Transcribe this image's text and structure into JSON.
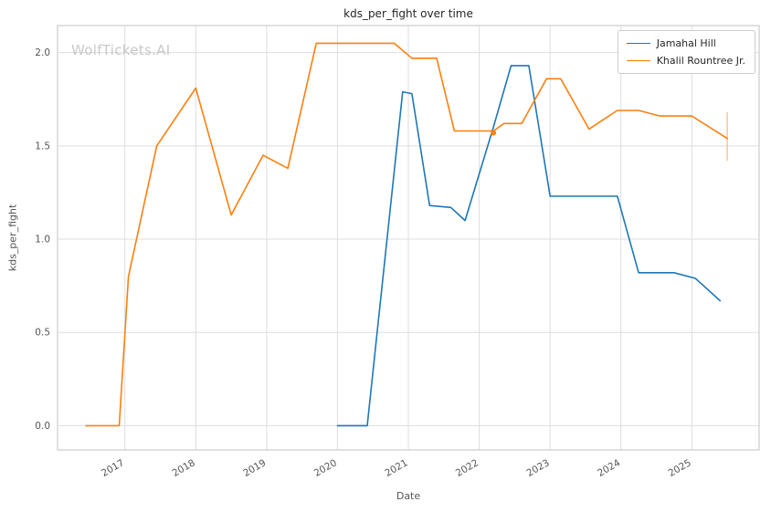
{
  "watermark": {
    "text": "WolfTickets.AI"
  },
  "chart_data": {
    "type": "line",
    "title": "kds_per_fight over time",
    "xlabel": "Date",
    "ylabel": "kds_per_fight",
    "xlim": [
      2016.05,
      2025.95
    ],
    "ylim": [
      -0.13,
      2.145
    ],
    "xticks": [
      2017,
      2018,
      2019,
      2020,
      2021,
      2022,
      2023,
      2024,
      2025
    ],
    "yticks": [
      0.0,
      0.5,
      1.0,
      1.5,
      2.0
    ],
    "grid": true,
    "legend_position": "upper right",
    "colors": {
      "grid": "#dddddd",
      "border": "#cccccc",
      "tick_text": "#555555"
    },
    "series": [
      {
        "name": "Jamahal Hill",
        "color": "#1f77b4",
        "x": [
          2020.0,
          2020.42,
          2020.92,
          2021.05,
          2021.3,
          2021.6,
          2021.8,
          2022.2,
          2022.45,
          2022.7,
          2023.0,
          2023.95,
          2024.25,
          2024.75,
          2025.05,
          2025.4
        ],
        "y": [
          0.0,
          0.0,
          1.79,
          1.78,
          1.18,
          1.17,
          1.1,
          1.6,
          1.93,
          1.93,
          1.23,
          1.23,
          0.82,
          0.82,
          0.79,
          0.67
        ]
      },
      {
        "name": "Khalil Rountree Jr.",
        "color": "#ff7f0e",
        "x": [
          2016.45,
          2016.92,
          2017.05,
          2017.45,
          2018.0,
          2018.5,
          2018.95,
          2019.3,
          2019.7,
          2020.8,
          2021.05,
          2021.4,
          2021.65,
          2022.2,
          2022.35,
          2022.6,
          2022.95,
          2023.15,
          2023.55,
          2023.95,
          2024.25,
          2024.55,
          2025.0,
          2025.5
        ],
        "y": [
          0.0,
          0.0,
          0.8,
          1.5,
          1.81,
          1.13,
          1.45,
          1.38,
          2.05,
          2.05,
          1.97,
          1.97,
          1.58,
          1.58,
          1.62,
          1.62,
          1.86,
          1.86,
          1.59,
          1.69,
          1.69,
          1.66,
          1.66,
          1.54
        ]
      }
    ],
    "markers": [
      {
        "series": "Khalil Rountree Jr.",
        "x": 2022.2,
        "y": 1.57,
        "color": "#ff7f0e"
      }
    ],
    "error_bar": {
      "x": 2025.5,
      "y_low": 1.42,
      "y_high": 1.68,
      "color": "#ffb47a"
    }
  }
}
